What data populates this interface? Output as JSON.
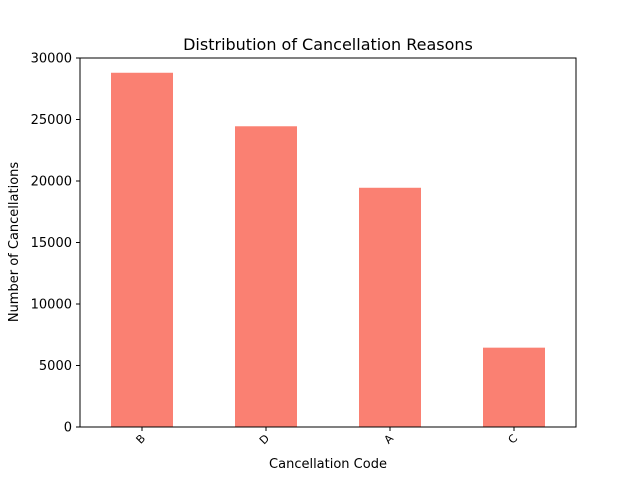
{
  "chart_data": {
    "type": "bar",
    "title": "Distribution of Cancellation Reasons",
    "xlabel": "Cancellation Code",
    "ylabel": "Number of Cancellations",
    "categories": [
      "B",
      "D",
      "A",
      "C"
    ],
    "values": [
      28800,
      24450,
      19450,
      6450
    ],
    "ylim": [
      0,
      30000
    ],
    "yticks": [
      0,
      5000,
      10000,
      15000,
      20000,
      25000,
      30000
    ],
    "bar_color": "#fa8072",
    "grid": false,
    "legend": "none",
    "xtick_rotation": 45
  }
}
